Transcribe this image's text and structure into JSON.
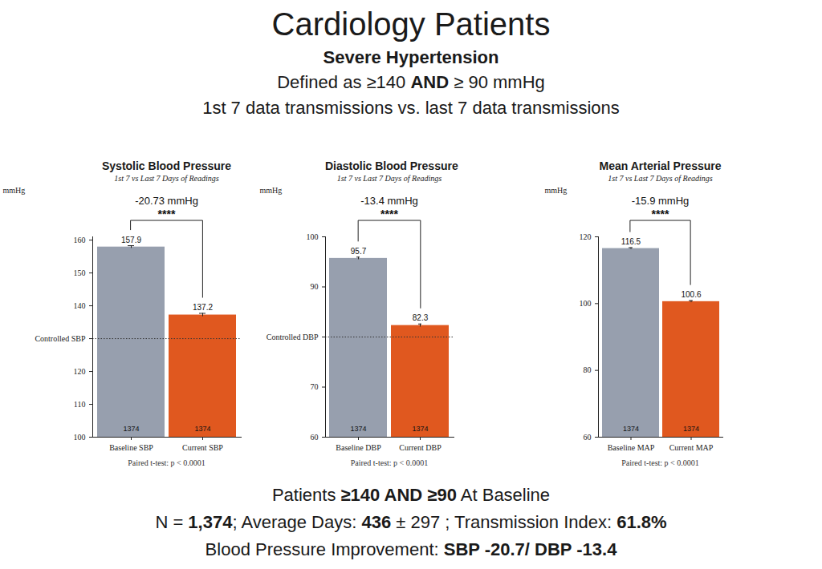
{
  "title": "Cardiology Patients",
  "subtitle": "Severe Hypertension",
  "header_lines": [
    [
      "Defined as ≥140 ",
      "AND",
      " ≥ 90 mmHg"
    ],
    [
      "1st 7 data transmissions vs. last 7 data transmissions"
    ]
  ],
  "footer_lines": [
    [
      "Patients ",
      "≥140 AND ≥90",
      " At Baseline"
    ],
    [
      "N = ",
      "1,374",
      "; Average Days: ",
      "436",
      " ± 297 ; Transmission Index: ",
      "61.8%"
    ],
    [
      "Blood Pressure Improvement: ",
      "SBP -20.7/ DBP -13.4"
    ]
  ],
  "chart_data": [
    {
      "type": "bar",
      "title": "Systolic Blood Pressure",
      "subtitle": "1st 7 vs Last 7 Days of Readings",
      "categories": [
        "Baseline SBP",
        "Current SBP"
      ],
      "values": [
        157.9,
        137.2
      ],
      "errors": [
        0.4,
        0.5
      ],
      "n": [
        1374,
        1374
      ],
      "colors": [
        "#979fae",
        "#e0581f"
      ],
      "y_label": "mmHg",
      "ylim": [
        100,
        161
      ],
      "yticks": [
        100,
        110,
        120,
        {
          "value": 130,
          "label": "Controlled SBP"
        },
        140,
        150,
        160
      ],
      "reference_line": 130,
      "data_labels": true,
      "comparison": {
        "label": "-20.73 mmHg",
        "significance": "****"
      },
      "note": "Paired t-test: p < 0.0001"
    },
    {
      "type": "bar",
      "title": "Diastolic Blood Pressure",
      "subtitle": "1st 7 vs Last 7 Days of Readings",
      "categories": [
        "Baseline DBP",
        "Current DBP"
      ],
      "values": [
        95.7,
        82.3
      ],
      "errors": [
        0.25,
        0.3
      ],
      "n": [
        1374,
        1374
      ],
      "colors": [
        "#979fae",
        "#e0581f"
      ],
      "y_label": "mmHg",
      "ylim": [
        60,
        100
      ],
      "yticks": [
        60,
        70,
        {
          "value": 80,
          "label": "Controlled DBP"
        },
        90,
        100
      ],
      "reference_line": 80,
      "data_labels": true,
      "comparison": {
        "label": "-13.4 mmHg",
        "significance": "****"
      },
      "note": "Paired t-test: p < 0.0001"
    },
    {
      "type": "bar",
      "title": "Mean Arterial Pressure",
      "subtitle": "1st 7 vs Last 7 Days of Readings",
      "categories": [
        "Baseline MAP",
        "Current MAP"
      ],
      "values": [
        116.5,
        100.6
      ],
      "errors": [
        0.25,
        0.3
      ],
      "n": [
        1374,
        1374
      ],
      "colors": [
        "#979fae",
        "#e0581f"
      ],
      "y_label": "mmHg",
      "ylim": [
        60,
        120
      ],
      "yticks": [
        60,
        80,
        100,
        120
      ],
      "data_labels": true,
      "comparison": {
        "label": "-15.9 mmHg",
        "significance": "****"
      },
      "note": "Paired t-test: p < 0.0001"
    }
  ]
}
